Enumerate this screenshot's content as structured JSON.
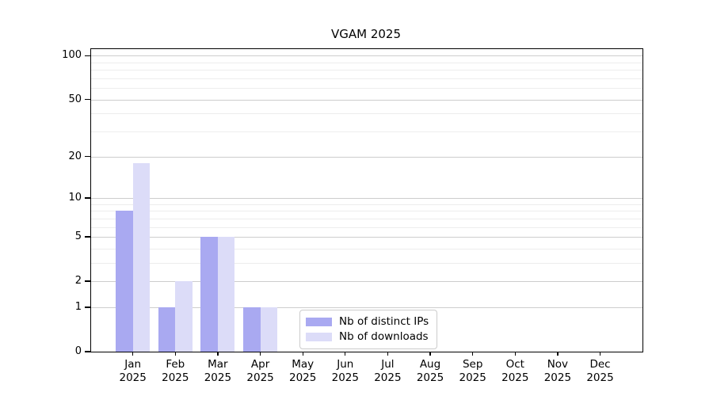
{
  "chart_data": {
    "type": "bar",
    "title": "VGAM 2025",
    "categories": [
      "Jan 2025",
      "Feb 2025",
      "Mar 2025",
      "Apr 2025",
      "May 2025",
      "Jun 2025",
      "Jul 2025",
      "Aug 2025",
      "Sep 2025",
      "Oct 2025",
      "Nov 2025",
      "Dec 2025"
    ],
    "series": [
      {
        "name": "Nb of distinct IPs",
        "color": "#a9a9f1",
        "values": [
          8,
          1,
          5,
          1,
          0,
          0,
          0,
          0,
          0,
          0,
          0,
          0
        ]
      },
      {
        "name": "Nb of downloads",
        "color": "#dcdcf8",
        "values": [
          18,
          2,
          5,
          1,
          0,
          0,
          0,
          0,
          0,
          0,
          0,
          0
        ]
      }
    ],
    "xlabel": "",
    "ylabel": "",
    "yscale": "log1p",
    "ylim": [
      0,
      111
    ],
    "y_tick_values": [
      0,
      1,
      2,
      5,
      10,
      20,
      50,
      100
    ],
    "y_tick_labels": [
      "0",
      "1",
      "2",
      "5",
      "10",
      "20",
      "50",
      "100"
    ],
    "y_minor_gridlines": [
      3,
      4,
      6,
      7,
      8,
      9,
      30,
      40,
      60,
      70,
      80,
      90
    ],
    "grid": true,
    "legend_position": "lower center",
    "legend": {
      "items": [
        {
          "label": "Nb of distinct IPs",
          "color": "#a9a9f1"
        },
        {
          "label": "Nb of downloads",
          "color": "#dcdcf8"
        }
      ]
    }
  },
  "colors": {
    "major_gridline": "#cdcdcd",
    "minor_gridline": "#ededed",
    "spine": "#000000",
    "text": "#000000",
    "legend_border": "#cccccc",
    "background": "#ffffff"
  }
}
